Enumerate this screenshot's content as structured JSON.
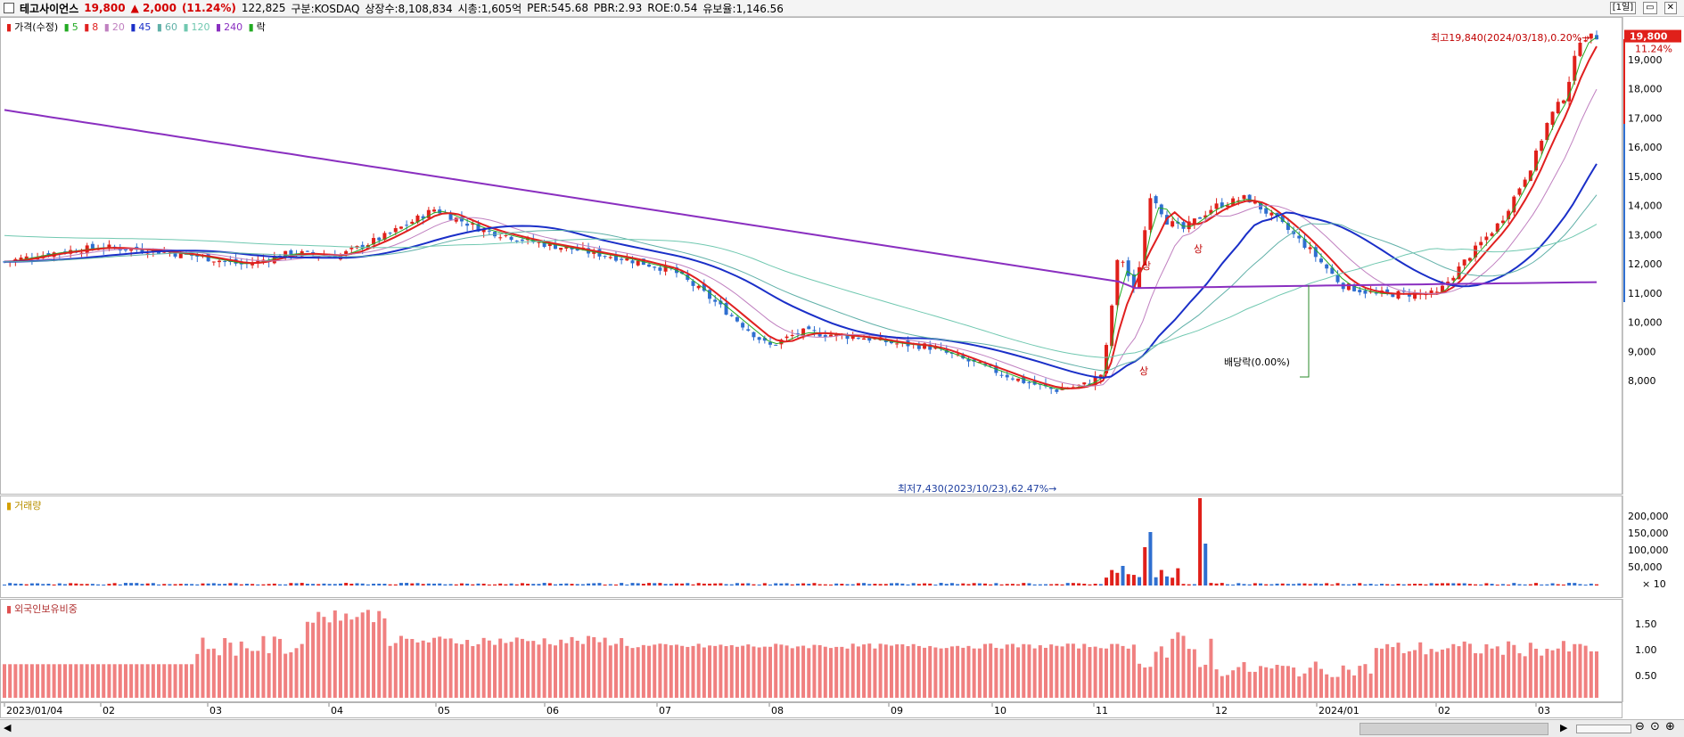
{
  "header": {
    "stock_name": "테고사이언스",
    "price": "19,800",
    "change": "▲ 2,000",
    "change_rate": "(11.24%)",
    "volume": "122,825",
    "market": "구분:KOSDAQ",
    "shares": "상장수:8,108,834",
    "market_cap": "시총:1,605억",
    "per": "PER:545.68",
    "pbr": "PBR:2.93",
    "roe": "ROE:0.54",
    "float_ratio": "유보율:1,146.56",
    "period_button": "[1일]"
  },
  "legend": {
    "price": "가격(수정)",
    "ma5": "5",
    "ma8": "8",
    "ma20": "20",
    "ma45": "45",
    "ma60": "60",
    "ma120": "120",
    "ma240": "240",
    "ex": "락"
  },
  "annotations": {
    "high": "최고19,840(2024/03/18),0.20%→",
    "low": "최저7,430(2023/10/23),62.47%→",
    "dividend": "배당락(0.00%)",
    "upper_limit_1": "상",
    "upper_limit_2": "상",
    "upper_limit_3": "상"
  },
  "price_axis": {
    "current": "19,800",
    "current_rate": "11.24%",
    "ticks": [
      "19,000",
      "18,000",
      "17,000",
      "16,000",
      "15,000",
      "14,000",
      "13,000",
      "12,000",
      "11,000",
      "10,000",
      "9,000",
      "8,000"
    ]
  },
  "volume_panel": {
    "title": "거래량",
    "ticks": [
      "200,000",
      "150,000",
      "100,000",
      "50,000"
    ],
    "unit": "× 10"
  },
  "foreign_panel": {
    "title": "외국인보유비중",
    "ticks": [
      "1.50",
      "1.00",
      "0.50"
    ]
  },
  "x_axis": {
    "labels": [
      "2023/01/04",
      "02",
      "03",
      "04",
      "05",
      "06",
      "07",
      "08",
      "09",
      "10",
      "11",
      "12",
      "2024/01",
      "02",
      "03"
    ]
  },
  "colors": {
    "up": "#e0201a",
    "down": "#2f6fd0",
    "ma5": "#22aa22",
    "ma8": "#e02020",
    "ma20": "#c080c0",
    "ma45": "#1a2fc8",
    "ma60": "#60b0a8",
    "ma120": "#70c8b0",
    "ma240": "#8a2fc0",
    "foreign_bar": "#f08080"
  },
  "chart_data": {
    "type": "candlestick",
    "price_min": 7430,
    "price_max": 19840,
    "close_series_approx": [
      [
        0,
        12100
      ],
      [
        0.03,
        12400
      ],
      [
        0.06,
        12600
      ],
      [
        0.09,
        12500
      ],
      [
        0.12,
        12300
      ],
      [
        0.15,
        12000
      ],
      [
        0.18,
        12400
      ],
      [
        0.21,
        12300
      ],
      [
        0.24,
        13000
      ],
      [
        0.27,
        13900
      ],
      [
        0.3,
        13200
      ],
      [
        0.33,
        12800
      ],
      [
        0.36,
        12500
      ],
      [
        0.39,
        12200
      ],
      [
        0.42,
        11800
      ],
      [
        0.44,
        11000
      ],
      [
        0.46,
        10100
      ],
      [
        0.48,
        9200
      ],
      [
        0.5,
        9700
      ],
      [
        0.52,
        9600
      ],
      [
        0.54,
        9500
      ],
      [
        0.56,
        9300
      ],
      [
        0.58,
        9200
      ],
      [
        0.6,
        8800
      ],
      [
        0.62,
        8400
      ],
      [
        0.64,
        8000
      ],
      [
        0.66,
        7700
      ],
      [
        0.68,
        7900
      ],
      [
        0.69,
        8300
      ],
      [
        0.7,
        12500
      ],
      [
        0.71,
        11000
      ],
      [
        0.72,
        14500
      ],
      [
        0.73,
        13500
      ],
      [
        0.74,
        13200
      ],
      [
        0.76,
        14000
      ],
      [
        0.78,
        14300
      ],
      [
        0.8,
        13500
      ],
      [
        0.82,
        12500
      ],
      [
        0.84,
        11300
      ],
      [
        0.86,
        11000
      ],
      [
        0.88,
        11000
      ],
      [
        0.9,
        11000
      ],
      [
        0.92,
        12300
      ],
      [
        0.94,
        13500
      ],
      [
        0.96,
        15500
      ],
      [
        0.97,
        17000
      ],
      [
        0.98,
        17800
      ],
      [
        0.99,
        19800
      ]
    ]
  }
}
